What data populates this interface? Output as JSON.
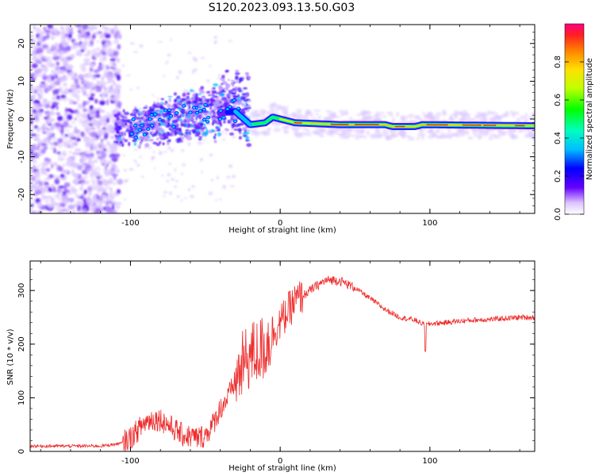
{
  "title": "S120.2023.093.13.50.G03",
  "chart_data": [
    {
      "type": "heatmap",
      "xlabel": "Height of straight line (km)",
      "ylabel": "Frequency (Hz)",
      "xlim": [
        -167,
        170
      ],
      "ylim": [
        -25,
        25
      ],
      "xticks": [
        -100,
        0,
        100
      ],
      "yticks": [
        -20,
        -10,
        0,
        10,
        20
      ],
      "colorbar": {
        "label": "Normalized spectral amplitude",
        "range": [
          0,
          1
        ],
        "ticks": [
          0.0,
          0.2,
          0.4,
          0.6,
          0.8
        ]
      },
      "ridge": {
        "description_points": [
          {
            "x": -100,
            "y": -2.5
          },
          {
            "x": -60,
            "y": 1
          },
          {
            "x": -30,
            "y": 2
          },
          {
            "x": -20,
            "y": -1.5
          },
          {
            "x": -10,
            "y": -1
          },
          {
            "x": -5,
            "y": 0.5
          },
          {
            "x": 10,
            "y": -1
          },
          {
            "x": 40,
            "y": -1.5
          },
          {
            "x": 70,
            "y": -1.5
          },
          {
            "x": 75,
            "y": -2
          },
          {
            "x": 90,
            "y": -2
          },
          {
            "x": 95,
            "y": -1.5
          },
          {
            "x": 170,
            "y": -1.8
          }
        ]
      }
    },
    {
      "type": "line",
      "xlabel": "Height of straight line (km)",
      "ylabel": "SNR (10 * v/v)",
      "xlim": [
        -167,
        170
      ],
      "ylim": [
        0,
        355
      ],
      "xticks": [
        -100,
        0,
        100
      ],
      "yticks": [
        0,
        100,
        200,
        300
      ],
      "series": [
        {
          "color": "#ee2a2a",
          "x": [
            -167,
            -150,
            -120,
            -106,
            -100,
            -95,
            -90,
            -85,
            -80,
            -75,
            -70,
            -65,
            -60,
            -55,
            -50,
            -45,
            -40,
            -35,
            -30,
            -25,
            -20,
            -15,
            -10,
            -5,
            0,
            5,
            10,
            15,
            20,
            25,
            30,
            35,
            40,
            50,
            60,
            70,
            80,
            90,
            97,
            100,
            110,
            120,
            130,
            140,
            150,
            160,
            170
          ],
          "values": [
            10,
            10,
            10,
            15,
            25,
            40,
            55,
            60,
            60,
            50,
            40,
            30,
            28,
            25,
            30,
            50,
            80,
            100,
            130,
            160,
            180,
            185,
            195,
            220,
            240,
            260,
            280,
            290,
            300,
            310,
            318,
            320,
            318,
            305,
            285,
            265,
            250,
            245,
            235,
            238,
            240,
            243,
            245,
            246,
            248,
            250,
            250
          ]
        }
      ]
    }
  ]
}
